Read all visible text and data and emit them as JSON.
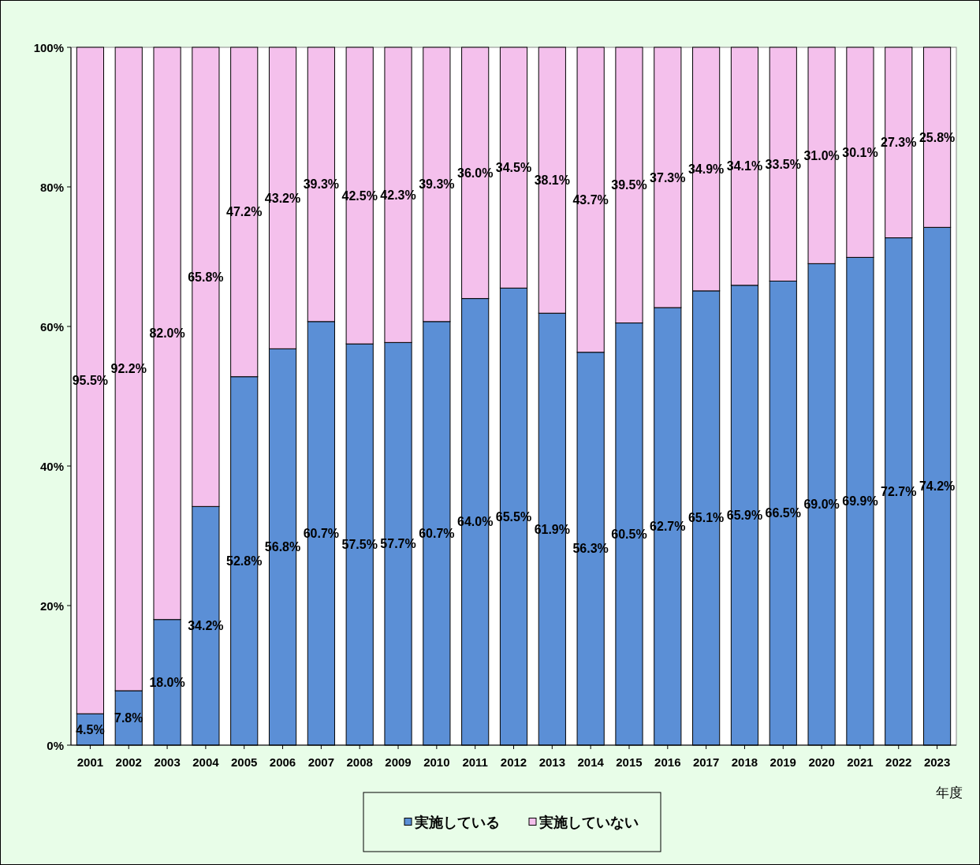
{
  "chart_data": {
    "type": "bar",
    "stacked": true,
    "categories": [
      "2001",
      "2002",
      "2003",
      "2004",
      "2005",
      "2006",
      "2007",
      "2008",
      "2009",
      "2010",
      "2011",
      "2012",
      "2013",
      "2014",
      "2015",
      "2016",
      "2017",
      "2018",
      "2019",
      "2020",
      "2021",
      "2022",
      "2023"
    ],
    "series": [
      {
        "name": "実施している",
        "color": "#5b8fd6",
        "values": [
          4.5,
          7.8,
          18.0,
          34.2,
          52.8,
          56.8,
          60.7,
          57.5,
          57.7,
          60.7,
          64.0,
          65.5,
          61.9,
          56.3,
          60.5,
          62.7,
          65.1,
          65.9,
          66.5,
          69.0,
          69.9,
          72.7,
          74.2
        ],
        "value_labels": [
          "4.5%",
          "7.8%",
          "18.0%",
          "34.2%",
          "52.8%",
          "56.8%",
          "60.7%",
          "57.5%",
          "57.7%",
          "60.7%",
          "64.0%",
          "65.5%",
          "61.9%",
          "56.3%",
          "60.5%",
          "62.7%",
          "65.1%",
          "65.9%",
          "66.5%",
          "69.0%",
          "69.9%",
          "72.7%",
          "74.2%"
        ]
      },
      {
        "name": "実施していない",
        "color": "#f4c0ec",
        "values": [
          95.5,
          92.2,
          82.0,
          65.8,
          47.2,
          43.2,
          39.3,
          42.5,
          42.3,
          39.3,
          36.0,
          34.5,
          38.1,
          43.7,
          39.5,
          37.3,
          34.9,
          34.1,
          33.5,
          31.0,
          30.1,
          27.3,
          25.8
        ],
        "value_labels": [
          "95.5%",
          "92.2%",
          "82.0%",
          "65.8%",
          "47.2%",
          "43.2%",
          "39.3%",
          "42.5%",
          "42.3%",
          "39.3%",
          "36.0%",
          "34.5%",
          "38.1%",
          "43.7%",
          "39.5%",
          "37.3%",
          "34.9%",
          "34.1%",
          "33.5%",
          "31.0%",
          "30.1%",
          "27.3%",
          "25.8%"
        ]
      }
    ],
    "ylim": [
      0,
      100
    ],
    "yticks": [
      {
        "value": 0,
        "label": "0%"
      },
      {
        "value": 20,
        "label": "20%"
      },
      {
        "value": 40,
        "label": "40%"
      },
      {
        "value": 60,
        "label": "60%"
      },
      {
        "value": 80,
        "label": "80%"
      },
      {
        "value": 100,
        "label": "100%"
      }
    ],
    "xlabel": "年度",
    "legend": "bottom",
    "grid": false
  }
}
